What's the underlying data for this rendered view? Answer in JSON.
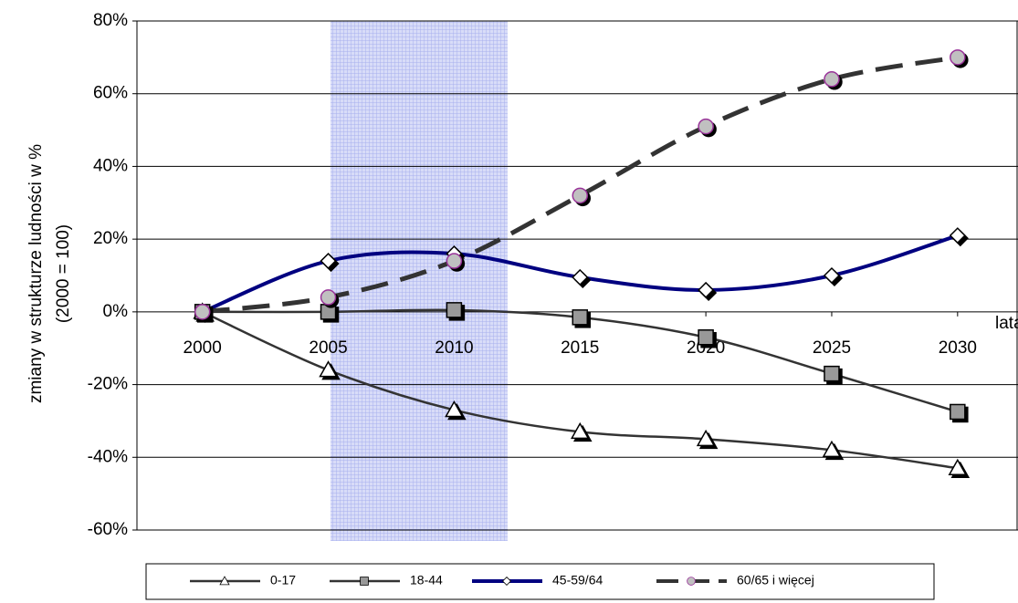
{
  "chart_data": {
    "type": "line",
    "y_label": [
      "zmiany w strukturze ludności w %",
      "(2000 = 100)"
    ],
    "x_label": "lata",
    "x": [
      2000,
      2005,
      2010,
      2015,
      2020,
      2025,
      2030
    ],
    "xlim": [
      1997.4,
      2032.4
    ],
    "xticks": [
      2000,
      2005,
      2010,
      2015,
      2020,
      2025,
      2030
    ],
    "ylim": [
      -60,
      80
    ],
    "yticks": [
      {
        "value": -60,
        "label": "-60%"
      },
      {
        "value": -40,
        "label": "-40%"
      },
      {
        "value": -20,
        "label": "-20%"
      },
      {
        "value": 0,
        "label": "0%"
      },
      {
        "value": 20,
        "label": "20%"
      },
      {
        "value": 40,
        "label": "40%"
      },
      {
        "value": 60,
        "label": "60%"
      },
      {
        "value": 80,
        "label": "80%"
      }
    ],
    "grid": true,
    "legend": "bottom",
    "series": [
      {
        "name": "0-17",
        "color": "#333333",
        "marker": "triangle",
        "values": [
          0,
          -16,
          -27,
          -33,
          -35,
          -38,
          -43
        ]
      },
      {
        "name": "18-44",
        "color": "#333333",
        "marker": "square",
        "values": [
          0,
          0,
          0.5,
          -1.5,
          -7,
          -17,
          -27.5
        ]
      },
      {
        "name": "45-59/64",
        "color": "#000080",
        "marker": "diamond",
        "values": [
          0,
          14,
          16,
          9.5,
          6,
          10,
          21
        ]
      },
      {
        "name": "60/65 i więcej",
        "color": "#333333",
        "marker": "circle",
        "dashed": true,
        "values": [
          0,
          4,
          14,
          32,
          51,
          64,
          70
        ]
      }
    ]
  }
}
